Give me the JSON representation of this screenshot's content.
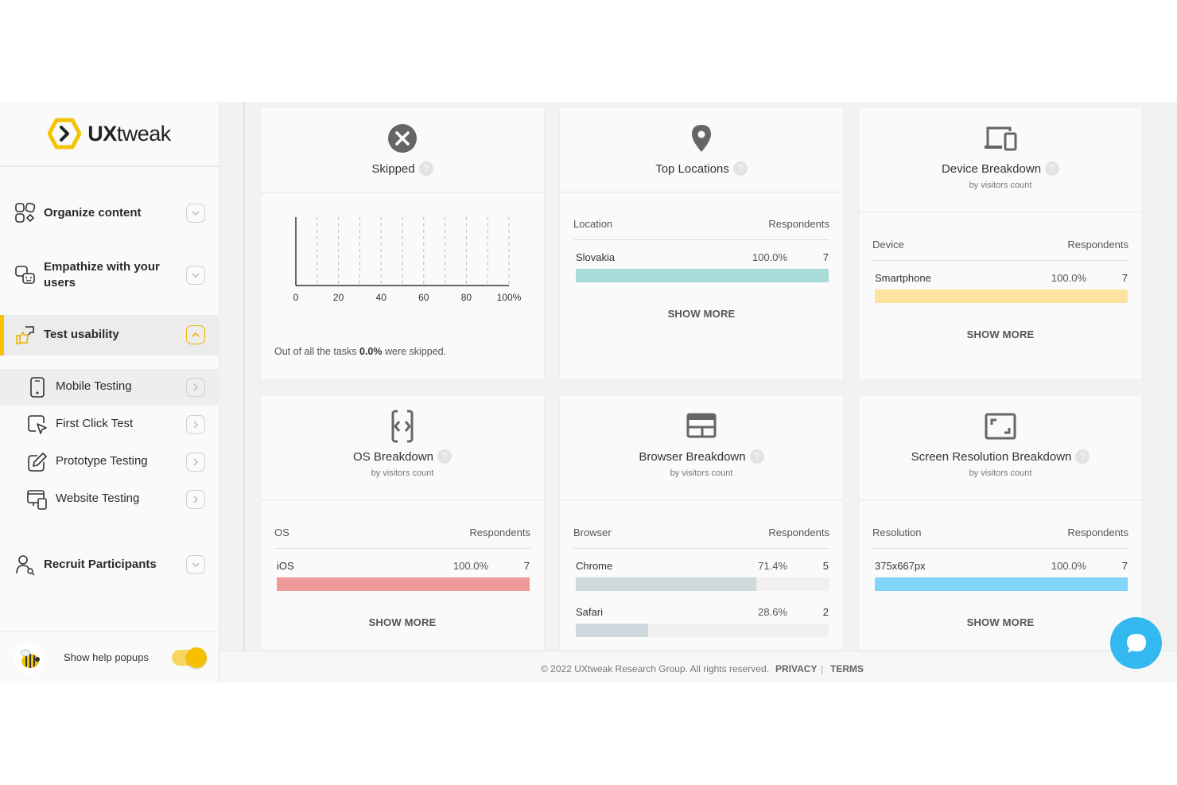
{
  "brand": {
    "name_bold": "UX",
    "name_rest": "tweak"
  },
  "sidebar": {
    "items": [
      {
        "label": "Organize content"
      },
      {
        "label_line1": "Empathize with your",
        "label_line2": "users"
      },
      {
        "label": "Test usability"
      },
      {
        "label": "Recruit Participants"
      }
    ],
    "subitems": [
      {
        "label": "Mobile Testing"
      },
      {
        "label": "First Click Test"
      },
      {
        "label": "Prototype Testing"
      },
      {
        "label": "Website Testing"
      }
    ],
    "help_label": "Show help popups",
    "help_enabled": true
  },
  "cards": {
    "skipped": {
      "title": "Skipped",
      "summary_prefix": "Out of all the tasks ",
      "summary_value": "0.0%",
      "summary_suffix": " were skipped."
    },
    "locations": {
      "title": "Top Locations",
      "col1": "Location",
      "col2": "Respondents",
      "rows": [
        {
          "label": "Slovakia",
          "pct": "100.0%",
          "count": "7",
          "fraction": 1.0
        }
      ],
      "show_more": "SHOW MORE"
    },
    "device": {
      "title": "Device Breakdown",
      "subtitle": "by visitors count",
      "col1": "Device",
      "col2": "Respondents",
      "rows": [
        {
          "label": "Smartphone",
          "pct": "100.0%",
          "count": "7",
          "fraction": 1.0
        }
      ],
      "show_more": "SHOW MORE"
    },
    "os": {
      "title": "OS Breakdown",
      "subtitle": "by visitors count",
      "col1": "OS",
      "col2": "Respondents",
      "rows": [
        {
          "label": "iOS",
          "pct": "100.0%",
          "count": "7",
          "fraction": 1.0
        }
      ],
      "show_more": "SHOW MORE"
    },
    "browser": {
      "title": "Browser Breakdown",
      "subtitle": "by visitors count",
      "col1": "Browser",
      "col2": "Respondents",
      "rows": [
        {
          "label": "Chrome",
          "pct": "71.4%",
          "count": "5",
          "fraction": 0.714
        },
        {
          "label": "Safari",
          "pct": "28.6%",
          "count": "2",
          "fraction": 0.286
        }
      ]
    },
    "resolution": {
      "title": "Screen Resolution Breakdown",
      "subtitle": "by visitors count",
      "col1": "Resolution",
      "col2": "Respondents",
      "rows": [
        {
          "label": "375x667px",
          "pct": "100.0%",
          "count": "7",
          "fraction": 1.0
        }
      ],
      "show_more": "SHOW MORE"
    }
  },
  "colors": {
    "accent": "#f4c400",
    "locations_bar": "#a8dcd9",
    "device_bar": "#fde3a0",
    "os_bar": "#ef9a9a",
    "browser_bar": "#cfd8dc",
    "resolution_bar": "#81d4fa",
    "chat": "#33b8f0"
  },
  "chart_data": {
    "type": "bar",
    "categories": [],
    "values": [],
    "xlim": [
      0,
      100
    ],
    "xticks": [
      "0",
      "20",
      "40",
      "60",
      "80",
      "100%"
    ],
    "grid": "vertical-dashed"
  },
  "footer": {
    "copyright": "© 2022 UXtweak Research Group. All rights reserved.",
    "privacy": "PRIVACY",
    "separator": "|",
    "terms": "TERMS"
  }
}
